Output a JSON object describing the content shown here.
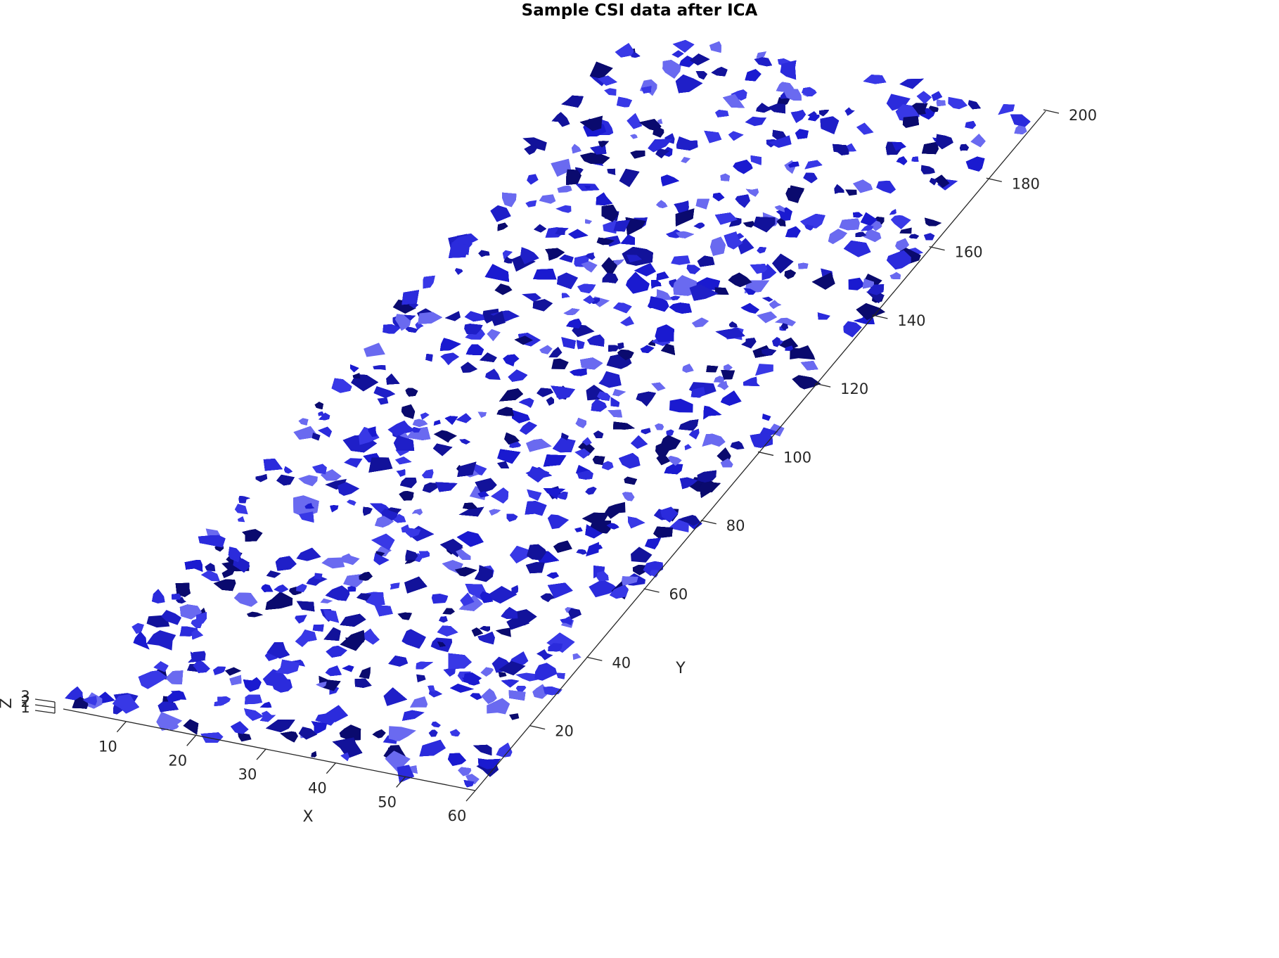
{
  "chart_data": {
    "type": "isosurface-3d",
    "title": "Sample CSI data after ICA",
    "xlabel": "X",
    "ylabel": "Y",
    "zlabel": "Z",
    "xlim": [
      1,
      60
    ],
    "ylim": [
      1,
      200
    ],
    "zlim": [
      1,
      3
    ],
    "xticks": [
      10,
      20,
      30,
      40,
      50,
      60
    ],
    "xtick_labels": [
      "10",
      "20",
      "30",
      "40",
      "50",
      "60"
    ],
    "yticks": [
      20,
      40,
      60,
      80,
      100,
      120,
      140,
      160,
      180,
      200
    ],
    "ytick_labels": [
      "20",
      "40",
      "60",
      "80",
      "100",
      "120",
      "140",
      "160",
      "180",
      "200"
    ],
    "zticks": [
      1,
      2,
      3
    ],
    "ztick_labels": [
      "1",
      "2",
      "3"
    ],
    "surface_color": "#1a1ad0",
    "surface_dark": "#0a0a6e",
    "surface_light": "#6a6af0",
    "grid": false,
    "box": false
  }
}
